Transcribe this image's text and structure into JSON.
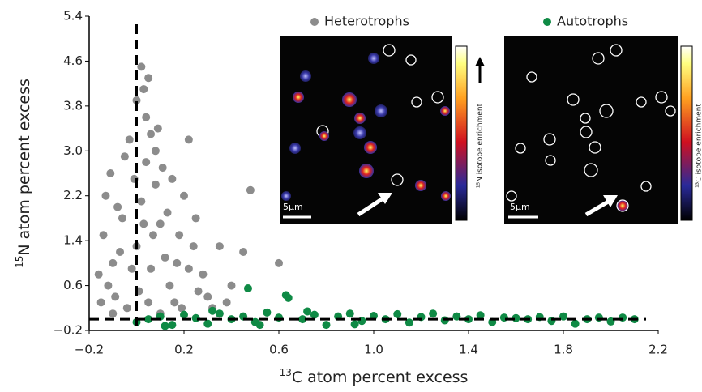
{
  "chart_data": {
    "type": "scatter",
    "x_label": {
      "sup": "13",
      "text": "C atom percent excess"
    },
    "y_label": {
      "sup": "15",
      "text": "N atom percent excess"
    },
    "xlim": [
      -0.2,
      2.2
    ],
    "ylim": [
      -0.2,
      5.4
    ],
    "xticks": [
      {
        "value": -0.2,
        "label": "−0.2"
      },
      0.2,
      0.6,
      {
        "value": 1.0,
        "label": "1.0"
      },
      1.4,
      1.8,
      {
        "value": 2.2,
        "label": "2.2"
      }
    ],
    "yticks": [
      {
        "value": -0.2,
        "label": "−0.2"
      },
      0.6,
      1.4,
      2.2,
      {
        "value": 3.0,
        "label": "3.0"
      },
      3.8,
      4.6,
      5.4
    ],
    "reference_lines": {
      "x": 0,
      "y": 0
    },
    "legend": "top",
    "series": [
      {
        "name": "Heterotrophs",
        "color": "#8c8c8c",
        "x": [
          -0.15,
          -0.12,
          -0.1,
          -0.14,
          -0.08,
          -0.11,
          -0.05,
          -0.03,
          -0.06,
          -0.09,
          -0.04,
          -0.02,
          0.0,
          0.02,
          0.04,
          0.06,
          0.08,
          0.1,
          0.12,
          0.14,
          0.16,
          0.18,
          0.2,
          0.22,
          0.24,
          0.26,
          0.28,
          0.3,
          0.35,
          0.4,
          0.45,
          0.48,
          0.6,
          0.02,
          0.05,
          0.03,
          0.0,
          0.09,
          0.22,
          -0.13,
          -0.07,
          0.01,
          0.03,
          0.05,
          0.07,
          0.11,
          0.13,
          0.15,
          -0.01,
          0.06,
          0.17,
          0.19,
          0.25,
          -0.16,
          0.32,
          0.1,
          -0.1,
          0.38,
          0.04,
          0.08
        ],
        "values": [
          0.3,
          0.6,
          1.0,
          1.5,
          2.0,
          2.6,
          2.9,
          3.2,
          1.8,
          0.4,
          0.2,
          0.9,
          1.3,
          2.1,
          2.8,
          3.3,
          2.4,
          1.7,
          1.1,
          0.6,
          0.3,
          1.5,
          2.2,
          0.9,
          1.3,
          0.5,
          0.8,
          0.4,
          1.3,
          0.6,
          1.2,
          2.3,
          1.0,
          4.5,
          4.3,
          4.1,
          3.9,
          3.4,
          3.2,
          2.2,
          1.2,
          0.5,
          1.7,
          0.3,
          1.5,
          2.7,
          1.9,
          2.5,
          2.5,
          0.9,
          1.0,
          0.2,
          1.8,
          0.8,
          0.2,
          0.1,
          0.1,
          0.3,
          3.6,
          3.0
        ]
      },
      {
        "name": "Autotrophs",
        "color": "#0f8a45",
        "x": [
          0.0,
          0.05,
          0.1,
          0.15,
          0.2,
          0.25,
          0.3,
          0.35,
          0.4,
          0.45,
          0.47,
          0.5,
          0.55,
          0.6,
          0.63,
          0.64,
          0.7,
          0.75,
          0.8,
          0.85,
          0.9,
          0.95,
          1.0,
          1.05,
          1.1,
          1.15,
          1.2,
          1.25,
          1.3,
          1.35,
          1.4,
          1.45,
          1.5,
          1.55,
          1.6,
          1.65,
          1.7,
          1.75,
          1.8,
          1.85,
          1.9,
          1.95,
          2.0,
          2.05,
          2.1,
          0.12,
          0.32,
          0.52,
          0.72,
          0.92
        ],
        "values": [
          -0.05,
          0.0,
          0.05,
          -0.1,
          0.08,
          0.02,
          -0.08,
          0.1,
          0.0,
          0.05,
          0.55,
          -0.05,
          0.12,
          0.03,
          0.43,
          0.38,
          0.0,
          0.08,
          -0.1,
          0.05,
          0.1,
          -0.03,
          0.06,
          0.0,
          0.09,
          -0.06,
          0.04,
          0.1,
          -0.02,
          0.05,
          0.0,
          0.07,
          -0.05,
          0.03,
          0.02,
          0.0,
          0.04,
          -0.03,
          0.05,
          -0.08,
          0.0,
          0.03,
          -0.04,
          0.03,
          0.0,
          -0.12,
          0.15,
          -0.1,
          0.14,
          -0.09
        ]
      }
    ]
  },
  "insets": {
    "scale_bar_left": "5µm",
    "scale_bar_right": "5µm",
    "colorbar_left": "¹⁵N isotope enrichment",
    "colorbar_right": "¹³C isotope enrichment"
  }
}
